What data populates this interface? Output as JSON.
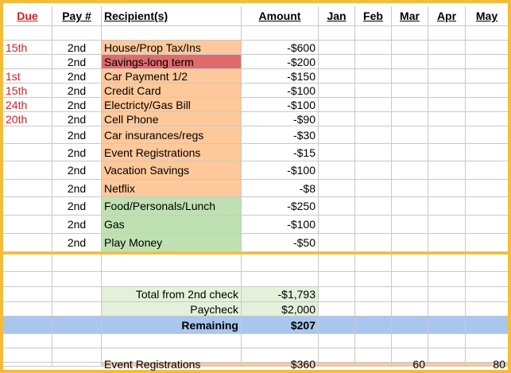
{
  "colors": {
    "frame": "#f4bd39",
    "orange": "#fdc89a",
    "red_highlight": "#e16a6a",
    "green": "#bfe1b1",
    "light_green": "#e3f1da",
    "blue_band": "#a9c6ee",
    "due_text": "#d81f1f"
  },
  "headers": {
    "due": "Due",
    "pay": "Pay #",
    "recipient": "Recipient(s)",
    "amount": "Amount",
    "jan": "Jan",
    "feb": "Feb",
    "mar": "Mar",
    "apr": "Apr",
    "may": "May"
  },
  "bills": [
    {
      "due": "15th",
      "pay": "2nd",
      "recipient": "House/Prop Tax/Ins",
      "amount": "-$600",
      "fill": "orange"
    },
    {
      "due": "",
      "pay": "2nd",
      "recipient": "Savings-long term",
      "amount": "-$200",
      "fill": "red"
    },
    {
      "due": "1st",
      "pay": "2nd",
      "recipient": "Car Payment 1/2",
      "amount": "-$150",
      "fill": "orange"
    },
    {
      "due": "15th",
      "pay": "2nd",
      "recipient": "Credit Card",
      "amount": "-$100",
      "fill": "orange"
    },
    {
      "due": "24th",
      "pay": "2nd",
      "recipient": "Electricty/Gas Bill",
      "amount": "-$100",
      "fill": "orange"
    },
    {
      "due": "20th",
      "pay": "2nd",
      "recipient": "Cell Phone",
      "amount": "-$90",
      "fill": "orange"
    },
    {
      "due": "",
      "pay": "2nd",
      "recipient": "Car insurances/regs",
      "amount": "-$30",
      "fill": "orange"
    },
    {
      "due": "",
      "pay": "2nd",
      "recipient": "Event Registrations",
      "amount": "-$15",
      "fill": "orange"
    },
    {
      "due": "",
      "pay": "2nd",
      "recipient": "Vacation Savings",
      "amount": "-$100",
      "fill": "orange"
    },
    {
      "due": "",
      "pay": "2nd",
      "recipient": "Netflix",
      "amount": "-$8",
      "fill": "orange"
    },
    {
      "due": "",
      "pay": "2nd",
      "recipient": "Food/Personals/Lunch",
      "amount": "-$250",
      "fill": "green"
    },
    {
      "due": "",
      "pay": "2nd",
      "recipient": "Gas",
      "amount": "-$100",
      "fill": "green"
    },
    {
      "due": "",
      "pay": "2nd",
      "recipient": "Play Money",
      "amount": "-$50",
      "fill": "green"
    }
  ],
  "summary": {
    "total_label": "Total from 2nd check",
    "total_value": "-$1,793",
    "paycheck_label": "Paycheck",
    "paycheck_value": "$2,000",
    "remaining_label": "Remaining",
    "remaining_value": "$207"
  },
  "tracker": {
    "label": "Event Registrations",
    "amount": "$360",
    "jan": "",
    "feb": "",
    "mar": "60",
    "apr": "",
    "may": "80"
  }
}
